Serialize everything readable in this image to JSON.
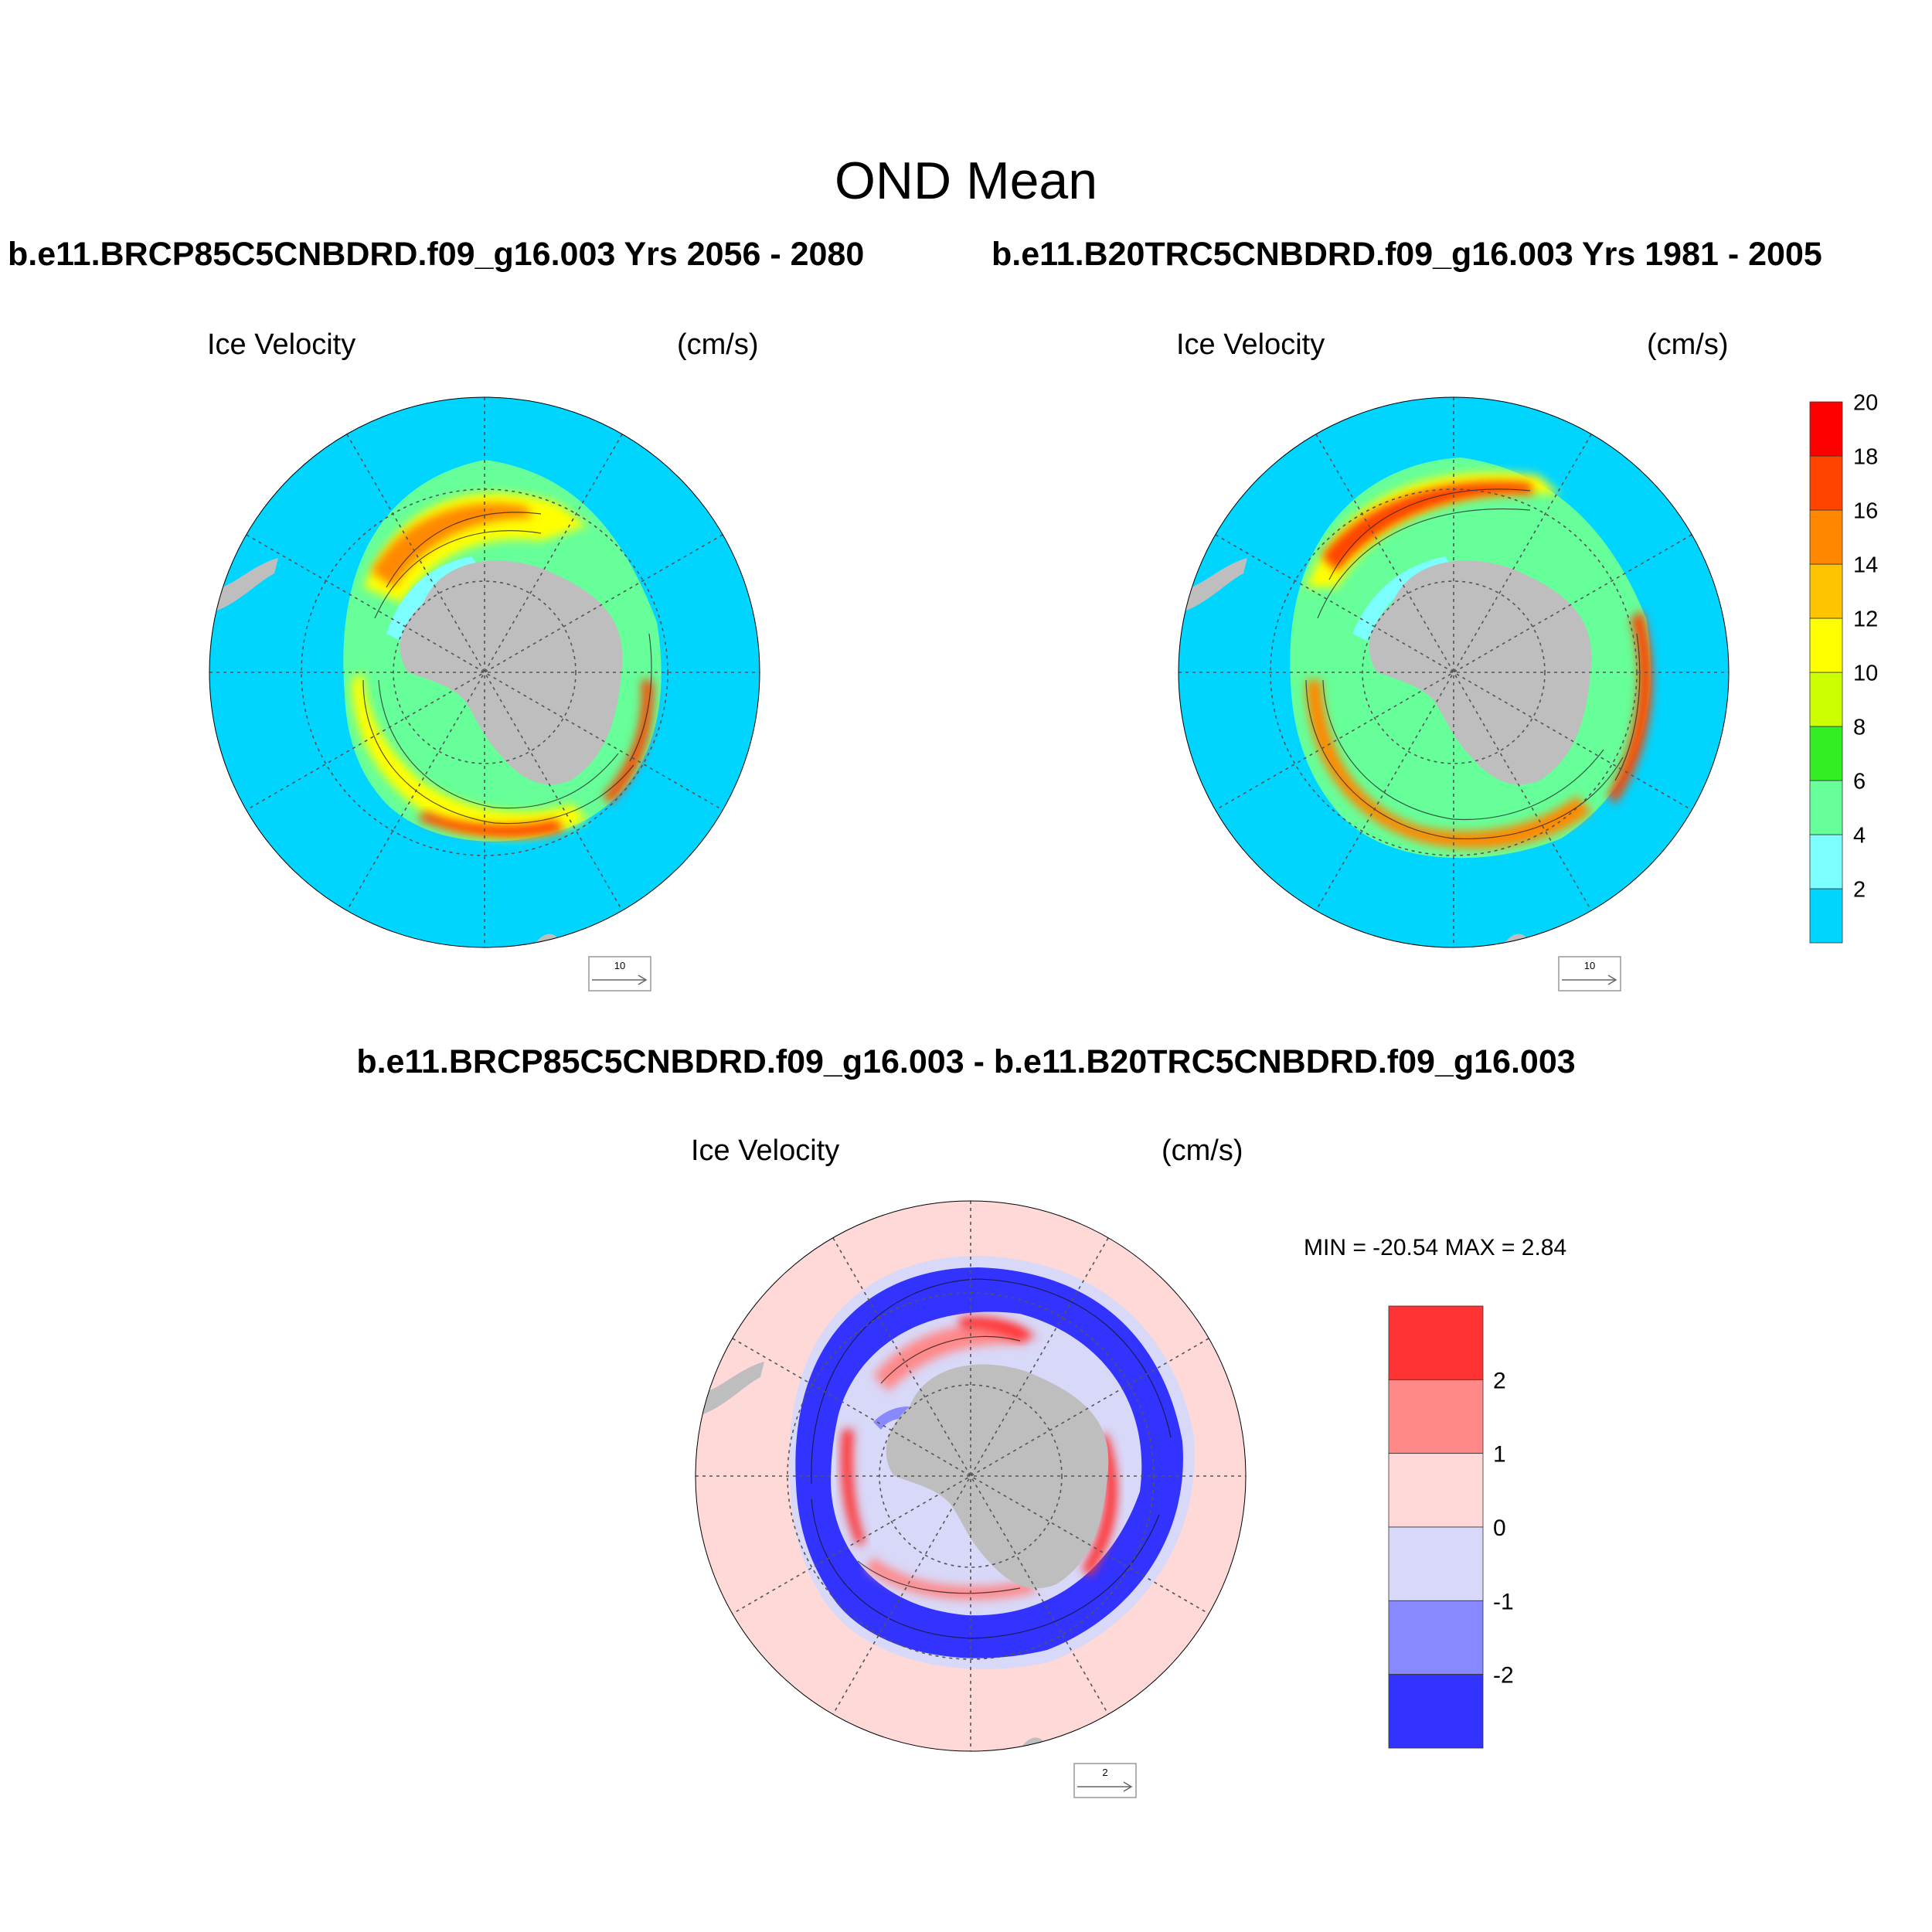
{
  "figure": {
    "title": "OND Mean",
    "case_a_title": "b.e11.BRCP85C5CNBDRD.f09_g16.003  Yrs 2056 - 2080",
    "case_b_title": "b.e11.B20TRC5CNBDRD.f09_g16.003  Yrs 1981 - 2005",
    "diff_title": "b.e11.BRCP85C5CNBDRD.f09_g16.003 - b.e11.B20TRC5CNBDRD.f09_g16.003"
  },
  "panels": {
    "left": {
      "variable": "Ice Velocity",
      "units": "(cm/s)",
      "ref_vector": "10"
    },
    "right": {
      "variable": "Ice Velocity",
      "units": "(cm/s)",
      "ref_vector": "10"
    },
    "diff": {
      "variable": "Ice Velocity",
      "units": "(cm/s)",
      "ref_vector": "2",
      "stats": "MIN = -20.54 MAX =   2.84"
    }
  },
  "chart_data": [
    {
      "type": "heatmap",
      "title": "Ice Velocity",
      "units": "(cm/s)",
      "projection": "south polar stereographic",
      "colorbar": {
        "levels": [
          "2",
          "4",
          "6",
          "8",
          "10",
          "12",
          "14",
          "16",
          "18",
          "20"
        ],
        "colors": [
          "#00d5ff",
          "#7dffff",
          "#66ff99",
          "#33ee22",
          "#ccff00",
          "#ffff00",
          "#ffc400",
          "#ff8800",
          "#ff4400",
          "#ff0000"
        ]
      }
    },
    {
      "type": "heatmap",
      "title": "Ice Velocity",
      "units": "(cm/s)",
      "projection": "south polar stereographic",
      "colorbar": {
        "levels": [
          "2",
          "1",
          "0",
          "-1",
          "-2"
        ],
        "colors": [
          "#ff3333",
          "#ff8888",
          "#ffd8d8",
          "#d8d8f8",
          "#8888ff",
          "#3333ff"
        ],
        "min": -20.54,
        "max": 2.84
      }
    }
  ]
}
